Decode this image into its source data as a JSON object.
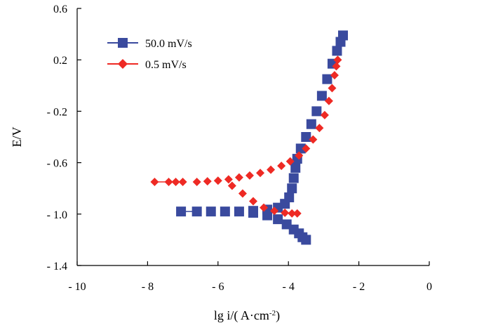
{
  "chart_data": {
    "type": "scatter",
    "title": "",
    "xlabel": "lg i/( A·cm",
    "xlabel_sup": "-2",
    "xlabel_close": ")",
    "ylabel": "E/V",
    "xlim": [
      -10,
      0
    ],
    "ylim": [
      -1.4,
      0.6
    ],
    "x_ticks": [
      -10,
      -8,
      -6,
      -4,
      -2,
      0
    ],
    "x_tick_labels": [
      "- 10",
      "- 8",
      "- 6",
      "- 4",
      "- 2",
      "0"
    ],
    "y_ticks": [
      0.6,
      0.2,
      -0.2,
      -0.6,
      -1.0,
      -1.4
    ],
    "y_tick_labels": [
      "0.6",
      "0.2",
      "- 0.2",
      "- 0.6",
      "- 1.0",
      "- 1.4"
    ],
    "grid": false,
    "legend_position": "top-left",
    "series": [
      {
        "name": "50.0 mV/s",
        "marker": "square",
        "color": "#3a4a9e",
        "points": [
          [
            -7.05,
            -0.98
          ],
          [
            -6.6,
            -0.98
          ],
          [
            -6.2,
            -0.98
          ],
          [
            -5.8,
            -0.98
          ],
          [
            -5.4,
            -0.98
          ],
          [
            -5.0,
            -0.975
          ],
          [
            -4.6,
            -0.965
          ],
          [
            -4.3,
            -0.95
          ],
          [
            -4.1,
            -0.92
          ],
          [
            -3.98,
            -0.87
          ],
          [
            -3.9,
            -0.8
          ],
          [
            -3.85,
            -0.72
          ],
          [
            -3.8,
            -0.64
          ],
          [
            -3.75,
            -0.57
          ],
          [
            -3.65,
            -0.49
          ],
          [
            -3.5,
            -0.4
          ],
          [
            -3.35,
            -0.3
          ],
          [
            -3.2,
            -0.2
          ],
          [
            -3.05,
            -0.08
          ],
          [
            -2.9,
            0.05
          ],
          [
            -2.75,
            0.17
          ],
          [
            -2.62,
            0.27
          ],
          [
            -2.52,
            0.34
          ],
          [
            -2.45,
            0.39
          ],
          [
            -5.0,
            -0.99
          ],
          [
            -4.6,
            -1.01
          ],
          [
            -4.3,
            -1.04
          ],
          [
            -4.05,
            -1.08
          ],
          [
            -3.85,
            -1.12
          ],
          [
            -3.7,
            -1.15
          ],
          [
            -3.6,
            -1.18
          ],
          [
            -3.5,
            -1.2
          ]
        ]
      },
      {
        "name": "0.5 mV/s",
        "marker": "diamond",
        "color": "#ee2a24",
        "points": [
          [
            -7.8,
            -0.75
          ],
          [
            -7.4,
            -0.75
          ],
          [
            -7.2,
            -0.75
          ],
          [
            -7.0,
            -0.75
          ],
          [
            -6.6,
            -0.75
          ],
          [
            -6.3,
            -0.745
          ],
          [
            -6.0,
            -0.74
          ],
          [
            -5.7,
            -0.73
          ],
          [
            -5.4,
            -0.715
          ],
          [
            -5.1,
            -0.7
          ],
          [
            -4.8,
            -0.68
          ],
          [
            -4.5,
            -0.655
          ],
          [
            -4.2,
            -0.625
          ],
          [
            -3.95,
            -0.59
          ],
          [
            -3.7,
            -0.545
          ],
          [
            -3.5,
            -0.49
          ],
          [
            -3.3,
            -0.42
          ],
          [
            -3.12,
            -0.33
          ],
          [
            -2.97,
            -0.23
          ],
          [
            -2.85,
            -0.12
          ],
          [
            -2.76,
            -0.02
          ],
          [
            -2.69,
            0.08
          ],
          [
            -2.64,
            0.15
          ],
          [
            -2.6,
            0.2
          ],
          [
            -5.6,
            -0.78
          ],
          [
            -5.3,
            -0.84
          ],
          [
            -5.0,
            -0.9
          ],
          [
            -4.7,
            -0.95
          ],
          [
            -4.4,
            -0.975
          ],
          [
            -4.1,
            -0.99
          ],
          [
            -3.9,
            -0.995
          ],
          [
            -3.75,
            -0.995
          ]
        ]
      }
    ]
  }
}
